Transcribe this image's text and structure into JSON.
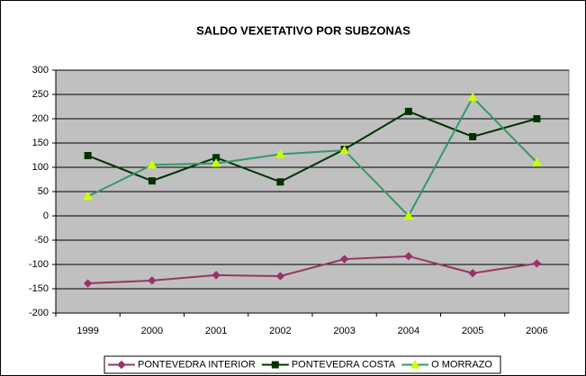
{
  "chart_data": {
    "type": "line",
    "title": "SALDO VEXETATIVO POR SUBZONAS",
    "categories": [
      "1999",
      "2000",
      "2001",
      "2002",
      "2003",
      "2004",
      "2005",
      "2006"
    ],
    "series": [
      {
        "name": "PONTEVEDRA INTERIOR",
        "color": "#993366",
        "marker": "diamond",
        "values": [
          -139,
          -133,
          -122,
          -124,
          -89,
          -83,
          -118,
          -98
        ]
      },
      {
        "name": "PONTEVEDRA COSTA",
        "color": "#003300",
        "marker": "square",
        "values": [
          124,
          72,
          120,
          70,
          137,
          215,
          163,
          200
        ]
      },
      {
        "name": "O MORRAZO",
        "color": "#339966",
        "marker_color": "#ccff00",
        "marker": "triangle",
        "values": [
          40,
          105,
          108,
          127,
          135,
          0,
          244,
          110
        ]
      }
    ],
    "ylim": [
      -200,
      300
    ],
    "yticks": [
      -200,
      -150,
      -100,
      -50,
      0,
      50,
      100,
      150,
      200,
      250,
      300
    ],
    "grid": true,
    "legend": "bottom",
    "plot_background": "#c0c0c0"
  }
}
